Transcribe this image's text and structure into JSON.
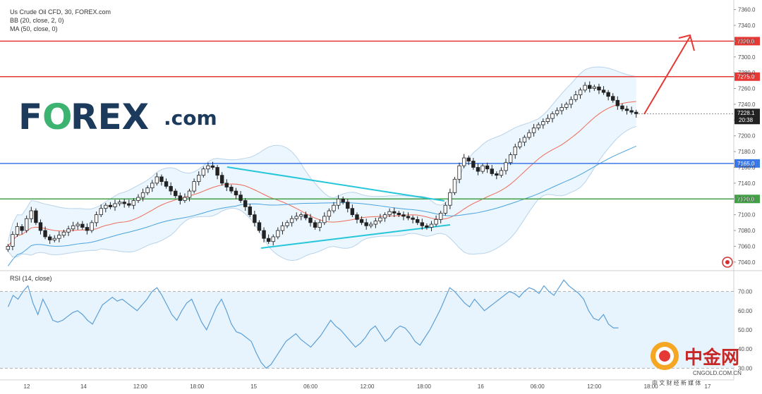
{
  "header": {
    "title": "Us Crude Oil CFD, 30, FOREX.com",
    "indicator_bb": "BB (20, close, 2, 0)",
    "indicator_ma": "MA (50, close, 0)"
  },
  "brand": {
    "logo_prefix": "F",
    "logo_letter_o": "O",
    "logo_rest": "REX",
    "logo_suffix": ".com",
    "watermark_cn": "中金网",
    "watermark_url": "CNGOLD.COM.CN",
    "watermark_tagline": "中 文 财 经 新 媒 体"
  },
  "rsi_panel": {
    "label": "RSI (14, close)"
  },
  "colors": {
    "resistance_red": "#e53935",
    "support_blue": "#3b78e7",
    "support_green": "#43a047",
    "trend_cyan": "#26c6da",
    "bb_fill": "#e3f2fd",
    "ma_blue": "#4aa3df",
    "bb_mid_red": "#ef6c5a",
    "rsi_line": "#5c9fd6",
    "rsi_fill": "#e8f4fd",
    "logo_navy": "#1b3a5c",
    "logo_green": "#3cb371"
  },
  "chart_data": [
    {
      "type": "candlestick",
      "title": "Us Crude Oil CFD, 30, FOREX.com",
      "ylim": [
        7030,
        7365
      ],
      "y_ticks": [
        7040.0,
        7060.0,
        7080.0,
        7100.0,
        7120.0,
        7140.0,
        7160.0,
        7180.0,
        7200.0,
        7220.0,
        7240.0,
        7260.0,
        7280.0,
        7300.0,
        7320.0,
        7340.0,
        7360.0
      ],
      "x_ticks": [
        "12",
        "14",
        "12:00",
        "18:00",
        "15",
        "06:00",
        "12:00",
        "18:00",
        "16",
        "06:00",
        "12:00",
        "18:00",
        "17"
      ],
      "horizontal_levels": [
        {
          "value": 7320.0,
          "label": "7320.0",
          "color": "#e53935"
        },
        {
          "value": 7275.0,
          "label": "7275.0",
          "color": "#e53935"
        },
        {
          "value": 7165.0,
          "label": "7165.0",
          "color": "#3b78e7"
        },
        {
          "value": 7120.0,
          "label": "7120.0",
          "color": "#43a047"
        }
      ],
      "current_price": {
        "value": 7228.1,
        "label": "7228.1",
        "countdown": "20:38"
      },
      "close_series": [
        7060,
        7075,
        7085,
        7080,
        7095,
        7105,
        7090,
        7080,
        7072,
        7068,
        7070,
        7074,
        7078,
        7082,
        7086,
        7088,
        7084,
        7080,
        7090,
        7100,
        7108,
        7112,
        7110,
        7114,
        7116,
        7114,
        7112,
        7118,
        7122,
        7128,
        7134,
        7140,
        7148,
        7142,
        7136,
        7130,
        7124,
        7118,
        7122,
        7130,
        7142,
        7150,
        7158,
        7162,
        7160,
        7150,
        7140,
        7135,
        7130,
        7125,
        7118,
        7110,
        7100,
        7090,
        7080,
        7070,
        7066,
        7072,
        7080,
        7086,
        7090,
        7095,
        7098,
        7100,
        7096,
        7090,
        7084,
        7090,
        7098,
        7105,
        7112,
        7120,
        7116,
        7108,
        7100,
        7094,
        7090,
        7086,
        7088,
        7092,
        7096,
        7100,
        7104,
        7102,
        7100,
        7098,
        7096,
        7094,
        7090,
        7086,
        7084,
        7088,
        7094,
        7102,
        7112,
        7128,
        7145,
        7162,
        7172,
        7168,
        7160,
        7155,
        7162,
        7158,
        7152,
        7150,
        7156,
        7166,
        7176,
        7186,
        7192,
        7198,
        7204,
        7210,
        7214,
        7218,
        7222,
        7228,
        7232,
        7236,
        7240,
        7246,
        7252,
        7258,
        7264,
        7260,
        7262,
        7258,
        7255,
        7250,
        7245,
        7238,
        7234,
        7232,
        7230,
        7228
      ],
      "rsi": {
        "ylim": [
          25,
          75
        ],
        "y_ticks": [
          30.0,
          40.0,
          50.0,
          60.0,
          70.0
        ],
        "overbought": 70,
        "oversold": 30,
        "values": [
          62,
          68,
          66,
          70,
          73,
          64,
          58,
          66,
          61,
          55,
          54,
          55,
          57,
          59,
          60,
          58,
          55,
          53,
          58,
          63,
          65,
          67,
          65,
          66,
          64,
          62,
          60,
          63,
          66,
          70,
          72,
          68,
          63,
          58,
          55,
          60,
          64,
          66,
          60,
          54,
          50,
          56,
          62,
          66,
          60,
          53,
          49,
          48,
          46,
          44,
          38,
          33,
          30,
          32,
          36,
          40,
          44,
          46,
          48,
          45,
          43,
          41,
          44,
          47,
          51,
          55,
          52,
          50,
          47,
          44,
          41,
          43,
          46,
          50,
          52,
          48,
          44,
          46,
          50,
          52,
          51,
          48,
          44,
          42,
          46,
          50,
          55,
          60,
          66,
          72,
          70,
          67,
          64,
          62,
          66,
          63,
          60,
          62,
          64,
          66,
          68,
          70,
          69,
          67,
          70,
          72,
          71,
          69,
          73,
          70,
          68,
          72,
          76,
          73,
          71,
          69,
          66,
          60,
          56,
          55,
          58,
          53,
          51,
          51
        ]
      }
    }
  ]
}
